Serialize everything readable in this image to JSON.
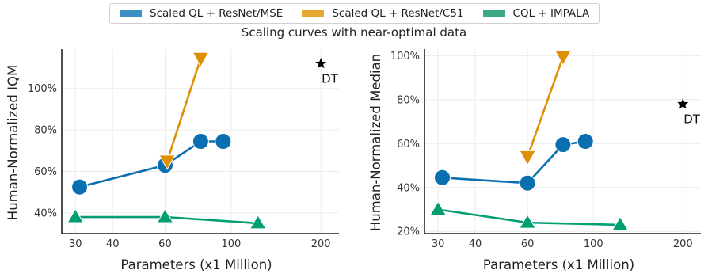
{
  "suptitle": "Scaling curves with near-optimal data",
  "legend": [
    {
      "name": "Scaled QL + ResNet/MSE",
      "color": "#3b8fc4"
    },
    {
      "name": "Scaled QL + ResNet/C51",
      "color": "#e5a632"
    },
    {
      "name": "CQL + IMPALA",
      "color": "#3aa886"
    }
  ],
  "chart_data": [
    {
      "type": "line",
      "title": "",
      "xlabel": "Parameters (x1 Million)",
      "ylabel": "Human-Normalized IQM",
      "xscale": "log",
      "xlim": [
        27,
        230
      ],
      "ylim": [
        30,
        119
      ],
      "xticks": [
        30,
        40,
        60,
        100,
        200
      ],
      "xtick_labels": [
        "30",
        "40",
        "60",
        "100",
        "200"
      ],
      "yticks": [
        40,
        60,
        80,
        100
      ],
      "ytick_labels": [
        "40%",
        "60%",
        "80%",
        "100%"
      ],
      "grid": true,
      "series": [
        {
          "name": "Scaled QL + ResNet/MSE",
          "color": "#0a6fb0",
          "marker": "circle",
          "x": [
            31,
            60,
            79,
            94
          ],
          "y": [
            52.5,
            63,
            74.5,
            74.5
          ]
        },
        {
          "name": "Scaled QL + ResNet/C51",
          "color": "#de8f05",
          "marker": "triangle-down",
          "x": [
            61,
            79
          ],
          "y": [
            65,
            114.5
          ]
        },
        {
          "name": "CQL + IMPALA",
          "color": "#029e73",
          "marker": "triangle-up",
          "x": [
            30,
            60,
            123
          ],
          "y": [
            38,
            38,
            35
          ]
        }
      ],
      "annotations": [
        {
          "text": "DT",
          "x": 200,
          "y": 112,
          "marker": "star"
        }
      ]
    },
    {
      "type": "line",
      "title": "",
      "xlabel": "Parameters (x1 Million)",
      "ylabel": "Human-Normalized Median",
      "xscale": "log",
      "xlim": [
        27,
        230
      ],
      "ylim": [
        19,
        103
      ],
      "xticks": [
        30,
        40,
        60,
        100,
        200
      ],
      "xtick_labels": [
        "30",
        "40",
        "60",
        "100",
        "200"
      ],
      "yticks": [
        20,
        40,
        60,
        80,
        100
      ],
      "ytick_labels": [
        "20%",
        "40%",
        "60%",
        "80%",
        "100%"
      ],
      "grid": true,
      "series": [
        {
          "name": "Scaled QL + ResNet/MSE",
          "color": "#0a6fb0",
          "marker": "circle",
          "x": [
            31,
            60,
            79,
            94
          ],
          "y": [
            44.5,
            42,
            59.5,
            61
          ]
        },
        {
          "name": "Scaled QL + ResNet/C51",
          "color": "#de8f05",
          "marker": "triangle-down",
          "x": [
            60,
            79
          ],
          "y": [
            54,
            99.5
          ]
        },
        {
          "name": "CQL + IMPALA",
          "color": "#029e73",
          "marker": "triangle-up",
          "x": [
            30,
            60,
            123
          ],
          "y": [
            30,
            24,
            23
          ]
        }
      ],
      "annotations": [
        {
          "text": "DT",
          "x": 200,
          "y": 78,
          "marker": "star"
        }
      ]
    }
  ]
}
